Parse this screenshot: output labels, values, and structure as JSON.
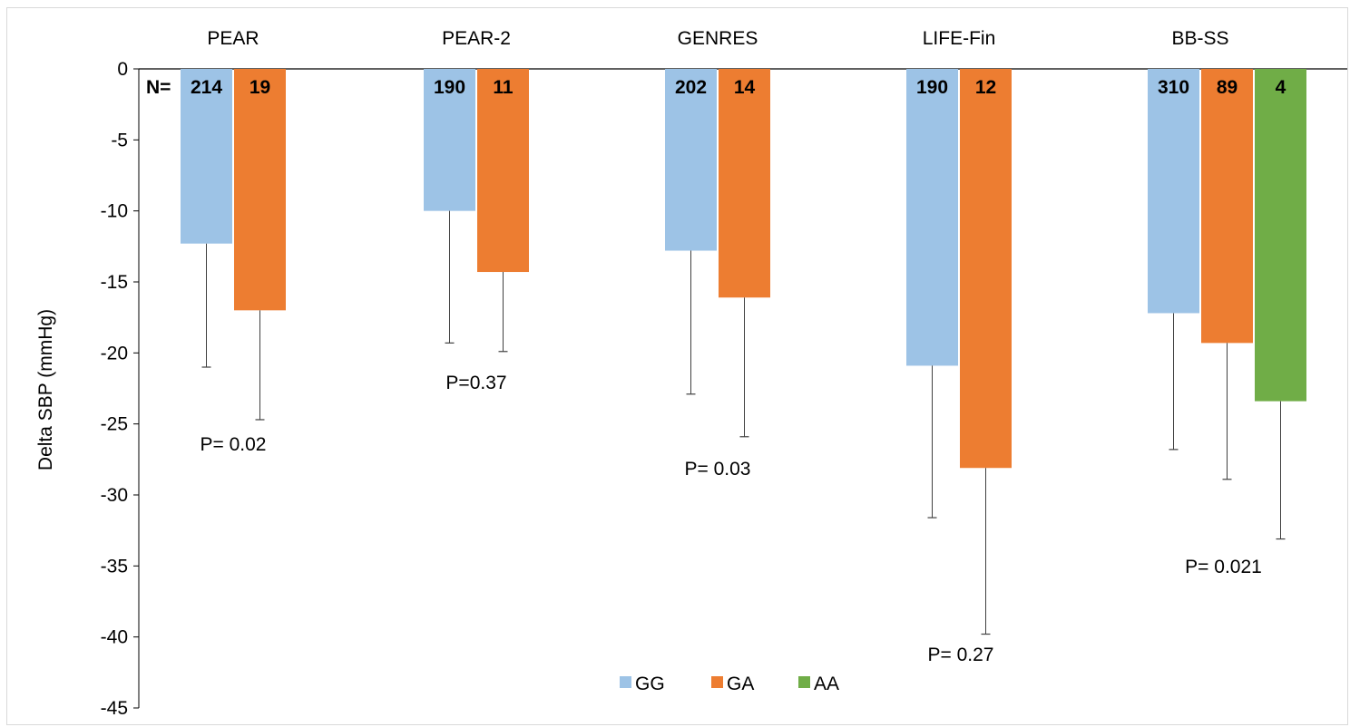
{
  "chart_data": {
    "type": "bar",
    "ylabel": "Delta SBP (mmHg)",
    "ylim": [
      -45,
      0
    ],
    "yticks": [
      0,
      -5,
      -10,
      -15,
      -20,
      -25,
      -30,
      -35,
      -40,
      -45
    ],
    "grid": false,
    "legend_position": "bottom",
    "n_prefix": "N=",
    "colors": {
      "GG": "#9dc3e6",
      "GA": "#ed7d31",
      "AA": "#70ad47"
    },
    "series": [
      {
        "name": "GG",
        "color": "#9dc3e6"
      },
      {
        "name": "GA",
        "color": "#ed7d31"
      },
      {
        "name": "AA",
        "color": "#70ad47"
      }
    ],
    "groups": [
      {
        "name": "PEAR",
        "p_label": "P= 0.02",
        "bars": [
          {
            "series": "GG",
            "value": -12.3,
            "err_low": -21.0,
            "n": "214"
          },
          {
            "series": "GA",
            "value": -17.0,
            "err_low": -24.7,
            "n": "19"
          }
        ]
      },
      {
        "name": "PEAR-2",
        "p_label": "P=0.37",
        "bars": [
          {
            "series": "GG",
            "value": -10.0,
            "err_low": -19.3,
            "n": "190"
          },
          {
            "series": "GA",
            "value": -14.3,
            "err_low": -19.9,
            "n": "11"
          }
        ]
      },
      {
        "name": "GENRES",
        "p_label": "P= 0.03",
        "bars": [
          {
            "series": "GG",
            "value": -12.8,
            "err_low": -22.9,
            "n": "202"
          },
          {
            "series": "GA",
            "value": -16.1,
            "err_low": -25.9,
            "n": "14"
          }
        ]
      },
      {
        "name": "LIFE-Fin",
        "p_label": "P= 0.27",
        "bars": [
          {
            "series": "GG",
            "value": -20.9,
            "err_low": -31.6,
            "n": "190"
          },
          {
            "series": "GA",
            "value": -28.1,
            "err_low": -39.8,
            "n": "12"
          }
        ]
      },
      {
        "name": "BB-SS",
        "p_label": "P= 0.021",
        "bars": [
          {
            "series": "GG",
            "value": -17.2,
            "err_low": -26.8,
            "n": "310"
          },
          {
            "series": "GA",
            "value": -19.3,
            "err_low": -28.9,
            "n": "89"
          },
          {
            "series": "AA",
            "value": -23.4,
            "err_low": -33.1,
            "n": "4"
          }
        ]
      }
    ]
  }
}
